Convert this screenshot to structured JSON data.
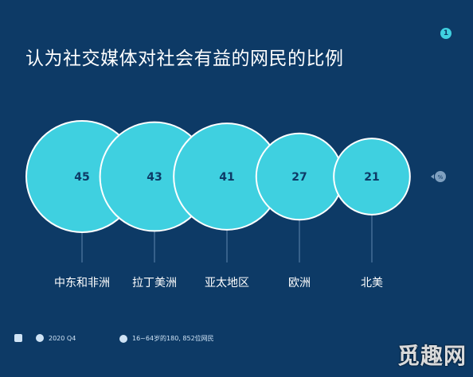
{
  "title": "认为社交媒体对社会有益的网民的比例",
  "badge": "1",
  "unit_marker": "%",
  "footer": {
    "date": "2020 Q4",
    "sample": "16~64岁的180, 852位网民"
  },
  "watermark": "觅趣网",
  "colors": {
    "background": "#0d3a66",
    "bubble": "#3fd0e0",
    "bubble_stroke": "#ffffff",
    "value_text": "#0d3a66"
  },
  "chart_data": {
    "type": "bubble",
    "categories": [
      "中东和非洲",
      "拉丁美洲",
      "亚太地区",
      "欧洲",
      "北美"
    ],
    "values": [
      45,
      43,
      41,
      27,
      21
    ]
  }
}
